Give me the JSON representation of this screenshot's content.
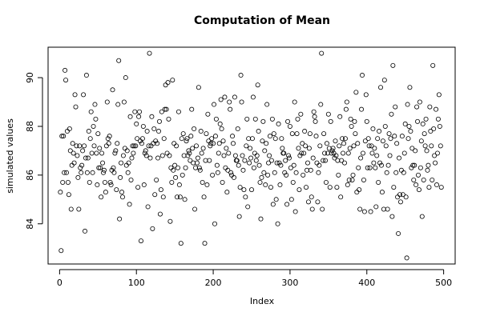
{
  "chart_data": {
    "type": "scatter",
    "title": "Computation of Mean",
    "xlabel": "Index",
    "ylabel": "simulated values",
    "xlim": [
      -15,
      515
    ],
    "ylim": [
      82.35,
      91.25
    ],
    "xticks": [
      0,
      100,
      200,
      300,
      400,
      500
    ],
    "yticks": [
      84,
      86,
      88,
      90
    ],
    "grid": false,
    "point_style": "open-circle",
    "point_color": "#000000",
    "n_points": 500,
    "y": [
      85.3,
      82.9,
      87.6,
      85.7,
      87.6,
      86.1,
      90.3,
      89.9,
      86.1,
      87.8,
      85.7,
      85.2,
      87.9,
      87.0,
      84.6,
      86.4,
      87.3,
      86.9,
      86.5,
      89.3,
      88.8,
      87.2,
      86.8,
      85.9,
      84.6,
      87.2,
      86.3,
      86.1,
      86.4,
      87.0,
      89.3,
      87.2,
      83.7,
      86.7,
      90.1,
      86.1,
      86.7,
      87.8,
      85.7,
      87.5,
      88.6,
      86.9,
      86.1,
      88.0,
      87.2,
      88.9,
      88.3,
      86.9,
      85.6,
      87.7,
      86.3,
      87.1,
      86.3,
      85.1,
      86.9,
      86.5,
      86.1,
      86.2,
      85.7,
      85.3,
      87.2,
      89.0,
      87.5,
      87.3,
      87.6,
      85.7,
      85.6,
      86.2,
      89.5,
      86.3,
      86.1,
      86.9,
      87.0,
      85.4,
      87.3,
      88.9,
      90.7,
      84.2,
      85.9,
      86.5,
      85.3,
      85.1,
      86.8,
      89.0,
      87.1,
      90.0,
      86.4,
      87.0,
      86.1,
      86.5,
      84.8,
      88.4,
      85.8,
      86.7,
      87.2,
      86.9,
      87.2,
      88.6,
      87.2,
      88.1,
      87.5,
      85.5,
      88.4,
      88.6,
      87.4,
      83.3,
      87.3,
      87.5,
      88.0,
      85.6,
      86.9,
      87.0,
      86.8,
      87.8,
      84.7,
      87.2,
      91.0,
      86.7,
      87.2,
      88.4,
      83.8,
      87.3,
      87.9,
      85.2,
      87.4,
      85.8,
      87.3,
      86.7,
      87.8,
      88.2,
      84.4,
      85.4,
      88.6,
      86.8,
      85.1,
      87.5,
      88.7,
      89.7,
      88.7,
      86.9,
      89.8,
      88.3,
      86.8,
      84.1,
      86.3,
      85.7,
      89.9,
      86.2,
      87.3,
      86.4,
      85.9,
      87.2,
      85.1,
      86.3,
      88.6,
      85.6,
      85.1,
      83.2,
      87.5,
      86.0,
      87.7,
      86.8,
      85.0,
      86.3,
      87.4,
      87.5,
      86.8,
      87.0,
      86.9,
      86.6,
      87.6,
      88.7,
      87.1,
      86.5,
      87.9,
      84.6,
      86.3,
      87.2,
      86.5,
      86.7,
      89.6,
      86.3,
      86.2,
      87.8,
      86.9,
      85.7,
      87.1,
      85.1,
      83.2,
      86.6,
      87.7,
      85.6,
      88.5,
      87.4,
      86.6,
      87.2,
      87.3,
      87.5,
      86.0,
      87.3,
      88.9,
      84.0,
      87.6,
      88.3,
      86.4,
      86.1,
      86.9,
      87.3,
      88.1,
      89.1,
      87.9,
      85.7,
      87.4,
      86.8,
      89.2,
      86.3,
      87.1,
      85.3,
      86.2,
      86.9,
      89.0,
      88.7,
      86.1,
      86.0,
      87.6,
      87.3,
      85.9,
      89.2,
      86.8,
      86.6,
      86.6,
      87.9,
      86.4,
      84.3,
      85.5,
      90.1,
      89.0,
      86.8,
      86.2,
      85.4,
      86.6,
      85.1,
      87.2,
      88.3,
      84.7,
      87.5,
      86.5,
      87.1,
      86.7,
      85.4,
      87.5,
      89.2,
      86.3,
      86.9,
      88.3,
      86.6,
      86.8,
      89.7,
      87.8,
      86.4,
      85.7,
      84.2,
      85.9,
      87.4,
      88.2,
      86.1,
      87.0,
      85.6,
      87.3,
      88.9,
      86.0,
      86.5,
      86.8,
      87.6,
      85.5,
      86.6,
      88.3,
      84.8,
      87.7,
      86.1,
      87.5,
      85.0,
      86.5,
      84.0,
      88.1,
      86.5,
      85.6,
      86.4,
      87.5,
      87.1,
      86.9,
      86.9,
      86.1,
      86.6,
      86.0,
      84.8,
      88.2,
      86.8,
      86.7,
      88.0,
      86.3,
      85.0,
      87.7,
      85.7,
      86.4,
      89.0,
      84.5,
      86.1,
      87.7,
      88.3,
      87.1,
      85.4,
      86.8,
      88.5,
      86.9,
      87.3,
      86.0,
      86.9,
      87.8,
      87.2,
      85.5,
      86.2,
      86.5,
      84.9,
      87.1,
      87.7,
      86.2,
      85.1,
      84.6,
      86.7,
      88.6,
      88.4,
      88.2,
      87.6,
      86.5,
      84.9,
      86.1,
      86.4,
      87.2,
      88.9,
      91.0,
      84.6,
      86.6,
      87.7,
      86.9,
      86.6,
      85.7,
      87.3,
      86.9,
      88.5,
      87.1,
      85.5,
      88.2,
      86.9,
      87.0,
      87.1,
      86.9,
      86.7,
      87.4,
      86.8,
      85.5,
      86.6,
      86.0,
      87.2,
      88.4,
      85.1,
      86.6,
      87.5,
      86.9,
      87.3,
      86.5,
      87.5,
      88.7,
      89.0,
      85.6,
      86.9,
      85.8,
      87.1,
      88.3,
      88.0,
      85.8,
      86.0,
      87.2,
      88.2,
      87.7,
      89.4,
      85.3,
      87.3,
      86.3,
      85.4,
      84.6,
      86.7,
      88.7,
      90.1,
      86.9,
      85.8,
      84.5,
      87.4,
      89.3,
      88.2,
      86.3,
      87.5,
      87.2,
      86.3,
      84.5,
      87.2,
      86.9,
      87.9,
      86.5,
      87.1,
      86.3,
      84.7,
      86.8,
      87.5,
      85.7,
      87.8,
      86.5,
      89.6,
      86.4,
      85.3,
      87.4,
      84.6,
      89.9,
      88.0,
      87.2,
      86.1,
      84.6,
      86.4,
      87.7,
      86.8,
      87.5,
      88.5,
      84.3,
      90.5,
      85.5,
      87.6,
      88.8,
      86.1,
      87.3,
      85.1,
      83.6,
      86.7,
      85.2,
      84.9,
      86.2,
      87.6,
      85.2,
      86.1,
      86.9,
      88.1,
      85.1,
      82.6,
      88.9,
      87.5,
      88.0,
      89.6,
      87.8,
      86.3,
      87.1,
      86.4,
      85.8,
      86.4,
      87.0,
      85.6,
      88.8,
      88.2,
      86.0,
      85.4,
      89.0,
      86.3,
      87.4,
      84.3,
      88.1,
      85.8,
      87.7,
      87.2,
      88.3,
      87.0,
      86.2,
      86.4,
      85.5,
      88.8,
      87.8,
      87.2,
      85.8,
      90.5,
      87.9,
      86.8,
      86.5,
      88.7,
      85.6,
      86.9,
      88.3,
      89.3,
      88.0,
      87.2,
      85.5
    ]
  }
}
